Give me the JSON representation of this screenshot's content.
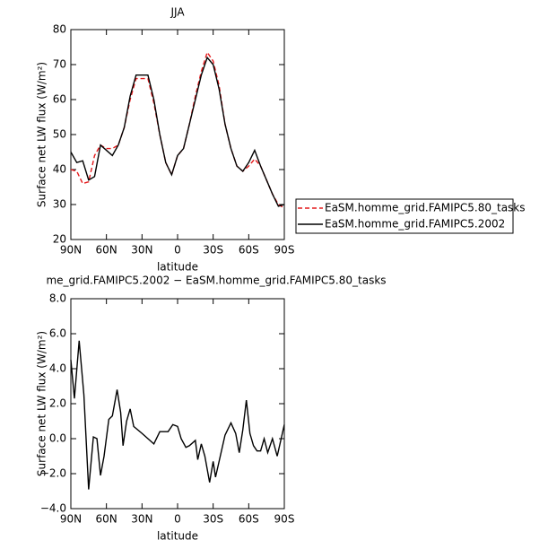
{
  "chart_data": [
    {
      "type": "line",
      "title": "JJA",
      "xlabel": "latitude",
      "ylabel": "Surface net LW flux (W/m²)",
      "x": [
        90,
        85,
        80,
        75,
        70,
        65,
        60,
        55,
        50,
        45,
        40,
        35,
        30,
        25,
        20,
        15,
        10,
        5,
        0,
        -5,
        -10,
        -15,
        -20,
        -25,
        -30,
        -35,
        -40,
        -45,
        -50,
        -55,
        -60,
        -65,
        -70,
        -75,
        -80,
        -85,
        -90
      ],
      "series": [
        {
          "name": "EaSM.homme_grid.FAMIPC5.80_tasks",
          "color": "#e41a1c",
          "dash": true,
          "values": [
            40,
            39.5,
            36,
            36.5,
            44,
            47,
            46,
            46,
            47,
            52,
            60,
            66,
            66,
            66,
            59,
            50,
            42,
            38.5,
            44,
            46,
            53,
            61,
            68,
            73.5,
            71,
            64,
            53,
            46,
            41,
            39.5,
            41,
            43,
            41,
            37,
            33,
            30,
            29
          ]
        },
        {
          "name": "EaSM.homme_grid.FAMIPC5.2002",
          "color": "#000000",
          "dash": false,
          "values": [
            45,
            42,
            42.5,
            37,
            38,
            47,
            45.5,
            44,
            47,
            52,
            61,
            67,
            67,
            67,
            60,
            50,
            42,
            38.5,
            44,
            46,
            53,
            60,
            67,
            72,
            70,
            63,
            53,
            46,
            41,
            39.5,
            42,
            45.5,
            41,
            37,
            33,
            29.5,
            30
          ]
        }
      ],
      "xlim": [
        90,
        -90
      ],
      "xticks": [
        {
          "value": 90,
          "label": "90N"
        },
        {
          "value": 60,
          "label": "60N"
        },
        {
          "value": 30,
          "label": "30N"
        },
        0,
        {
          "value": -30,
          "label": "30S"
        },
        {
          "value": -60,
          "label": "60S"
        },
        {
          "value": -90,
          "label": "90S"
        }
      ],
      "ylim": [
        20,
        80
      ],
      "yticks": [
        20,
        30,
        40,
        50,
        60,
        70,
        80
      ],
      "legend": "right"
    },
    {
      "type": "line",
      "title": "me_grid.FAMIPC5.2002 − EaSM.homme_grid.FAMIPC5.80_tasks",
      "xlabel": "latitude",
      "ylabel": "Surface net LW flux (W/m²)",
      "x": [
        90,
        87,
        83,
        79,
        75,
        71,
        68,
        65,
        62,
        58,
        55,
        51,
        48,
        46,
        43,
        40,
        37,
        30,
        20,
        15,
        8,
        4,
        0,
        -3,
        -7,
        -10,
        -15,
        -17,
        -20,
        -23,
        -27,
        -30,
        -32,
        -36,
        -40,
        -45,
        -49,
        -52,
        -55,
        -58,
        -61,
        -64,
        -67,
        -70,
        -73,
        -76,
        -80,
        -84,
        -90
      ],
      "series": [
        {
          "color": "#000000",
          "dash": false,
          "values": [
            4.5,
            2.3,
            5.6,
            2.5,
            -2.9,
            0.1,
            0.0,
            -2.1,
            -1.0,
            1.1,
            1.3,
            2.8,
            1.5,
            -0.4,
            1.0,
            1.7,
            0.7,
            0.3,
            -0.3,
            0.4,
            0.4,
            0.8,
            0.7,
            0,
            -0.5,
            -0.4,
            -0.1,
            -1.2,
            -0.3,
            -1.0,
            -2.5,
            -1.3,
            -2.2,
            -1.0,
            0.2,
            0.9,
            0.3,
            -0.8,
            0.5,
            2.2,
            0.3,
            -0.4,
            -0.7,
            -0.7,
            0.0,
            -0.8,
            0,
            -1.0,
            0.8
          ]
        }
      ],
      "xlim": [
        90,
        -90
      ],
      "xticks": [
        {
          "value": 90,
          "label": "90N"
        },
        {
          "value": 60,
          "label": "60N"
        },
        {
          "value": 30,
          "label": "30N"
        },
        0,
        {
          "value": -30,
          "label": "30S"
        },
        {
          "value": -60,
          "label": "60S"
        },
        {
          "value": -90,
          "label": "90S"
        }
      ],
      "ylim": [
        -4,
        8
      ],
      "yticks": [
        {
          "value": -4,
          "label": "−4.0"
        },
        {
          "value": -2,
          "label": "−2.0"
        },
        {
          "value": 0,
          "label": "0.0"
        },
        {
          "value": 2,
          "label": "2.0"
        },
        {
          "value": 4,
          "label": "4.0"
        },
        {
          "value": 6,
          "label": "6.0"
        },
        {
          "value": 8,
          "label": "8.0"
        }
      ]
    }
  ]
}
